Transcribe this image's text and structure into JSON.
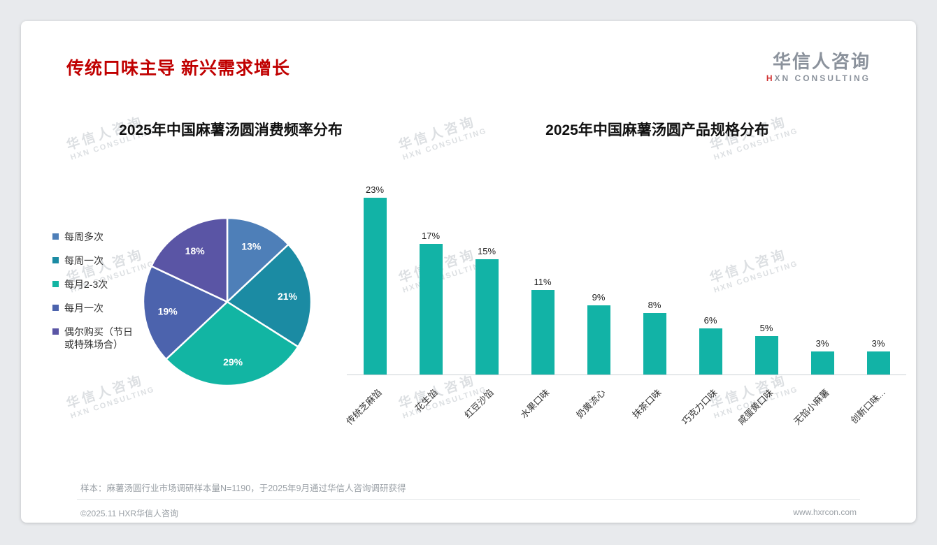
{
  "page": {
    "header_title": "传统口味主导 新兴需求增长",
    "logo": {
      "cn": "华信人咨询",
      "en": "HXN CONSULTING"
    },
    "watermark": {
      "line1": "华信人咨询",
      "line2": "HXN CONSULTING"
    },
    "footnote": "样本：麻薯汤圆行业市场调研样本量N=1190，于2025年9月通过华信人咨询调研获得",
    "copyright": "©2025.11 HXR华信人咨询",
    "website": "www.hxrcon.com"
  },
  "chart_data": [
    {
      "type": "pie",
      "title": "2025年中国麻薯汤圆消费频率分布",
      "labels": [
        "每周多次",
        "每周一次",
        "每月2-3次",
        "每月一次",
        "偶尔购买（节日\n或特殊场合）"
      ],
      "values": [
        13,
        21,
        29,
        19,
        18
      ],
      "value_suffix": "%",
      "colors": [
        "#4e7fb8",
        "#1b8ba3",
        "#12b5a3",
        "#4c63ad",
        "#5a55a5"
      ],
      "start_angle": "top",
      "direction": "clockwise",
      "legend_position": "left"
    },
    {
      "type": "bar",
      "title": "2025年中国麻薯汤圆产品规格分布",
      "categories": [
        "传统芝麻馅",
        "花生馅",
        "红豆沙馅",
        "水果口味",
        "奶黄流心",
        "抹茶口味",
        "巧克力口味",
        "咸蛋黄口味",
        "无馅小麻薯",
        "创新口味..."
      ],
      "values": [
        23,
        17,
        15,
        11,
        9,
        8,
        6,
        5,
        3,
        3
      ],
      "value_suffix": "%",
      "bar_color": "#12b3a6",
      "ylim": [
        0,
        25
      ],
      "grid": false,
      "xlabel": "",
      "ylabel": ""
    }
  ]
}
